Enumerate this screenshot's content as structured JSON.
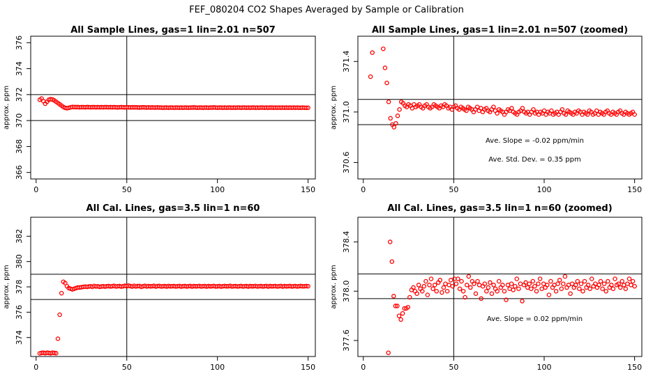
{
  "figure_title": "FEF_080204  CO2 Shapes Averaged by Sample or Calibration",
  "chart_data": [
    {
      "type": "scatter",
      "title": "All Sample Lines, gas=1 lin=2.01 n=507",
      "xlabel": "",
      "ylabel": "approx. ppm",
      "xlim": [
        -3,
        154
      ],
      "ylim": [
        365.5,
        376.5
      ],
      "xticks": [
        0,
        50,
        100,
        150
      ],
      "yticks": [
        366,
        368,
        370,
        372,
        374,
        376
      ],
      "hlines": [
        370.0,
        372.0
      ],
      "vlines": [
        50
      ],
      "grid": false,
      "marker_color": "#ff0000",
      "annotations": [],
      "series": [
        {
          "x_start": 2,
          "x_end": 150,
          "y": [
            371.6,
            371.7,
            371.5,
            371.3,
            371.45,
            371.6,
            371.65,
            371.62,
            371.55,
            371.45,
            371.35,
            371.25,
            371.15,
            371.05,
            370.98,
            370.95,
            370.98,
            371.02,
            371.05,
            371.04,
            371.03,
            371.04,
            371.02,
            371.03,
            371.03,
            371.02,
            371.04,
            371.03,
            371.02,
            371.03,
            371.03,
            371.02,
            371.03,
            371.02,
            371.03,
            371.02,
            371.03,
            371.03,
            371.02,
            371.03,
            371.02,
            371.03,
            371.02,
            371.01,
            371.02,
            371.03,
            371.02,
            371.01,
            371.02,
            371.02,
            371.01,
            371.02,
            371.01,
            371.02,
            371.01,
            371.0,
            371.01,
            371.02,
            371.01,
            371.0,
            371.01,
            371.0,
            371.01,
            371.0,
            371.0,
            371.01,
            371.0,
            371.0,
            370.99,
            371.0,
            371.0,
            370.99,
            371.0,
            371.0,
            370.99,
            371.0,
            371.0,
            370.99,
            371.0,
            370.99,
            371.0,
            371.0,
            370.99,
            371.0,
            371.0,
            371.01,
            371.0,
            370.99,
            371.0,
            371.0,
            370.99,
            371.0,
            371.0,
            370.99,
            371.0,
            371.0,
            371.01,
            371.0,
            370.99,
            371.0,
            371.0,
            370.99,
            371.0,
            370.99,
            371.0,
            371.0,
            370.99,
            371.0,
            370.99,
            371.0,
            371.0,
            370.99,
            371.0,
            371.0,
            370.99,
            371.0,
            370.99,
            371.0,
            371.0,
            370.99,
            371.0,
            370.99,
            371.0,
            371.0,
            370.99,
            371.0,
            370.99,
            371.0,
            371.0,
            370.99,
            371.0,
            370.99,
            371.0,
            370.99,
            371.0,
            370.99,
            371.0,
            370.99,
            371.0,
            370.99,
            371.0,
            370.99,
            371.0,
            370.99,
            370.99,
            371.0,
            370.99,
            370.99,
            370.99
          ]
        }
      ]
    },
    {
      "type": "scatter",
      "title": "All Sample Lines, gas=1 lin=2.01 n=507 (zoomed)",
      "xlabel": "",
      "ylabel": "approx. ppm",
      "xlim": [
        -3,
        154
      ],
      "ylim": [
        370.47,
        371.6
      ],
      "xticks": [
        0,
        50,
        100,
        150
      ],
      "yticks": [
        370.6,
        371.0,
        371.4
      ],
      "hlines": [
        370.9,
        371.1
      ],
      "vlines": [
        50
      ],
      "grid": false,
      "marker_color": "#ff0000",
      "annotations": [
        "Ave. Slope = -0.02  ppm/min",
        "Ave. Std. Dev. = 0.35  ppm"
      ],
      "series": [
        {
          "x_start": 2,
          "x_end": 150,
          "y": [
            null,
            null,
            371.28,
            371.47,
            null,
            null,
            null,
            null,
            null,
            371.5,
            371.35,
            371.23,
            371.08,
            370.95,
            370.9,
            370.88,
            370.91,
            370.97,
            371.02,
            371.08,
            371.07,
            371.05,
            371.04,
            371.06,
            371.05,
            371.03,
            371.06,
            371.04,
            371.05,
            371.06,
            371.04,
            371.03,
            371.05,
            371.06,
            371.04,
            371.03,
            371.04,
            371.06,
            371.05,
            371.04,
            371.03,
            371.05,
            371.04,
            371.06,
            371.05,
            371.03,
            371.04,
            371.02,
            371.04,
            371.05,
            371.03,
            371.02,
            371.04,
            371.03,
            371.02,
            371.01,
            371.04,
            371.03,
            371.02,
            371.0,
            371.02,
            371.04,
            371.01,
            371.03,
            371.0,
            371.02,
            371.03,
            371.01,
            371.0,
            371.02,
            371.04,
            371.01,
            370.99,
            371.02,
            371.01,
            371.0,
            370.98,
            371.0,
            371.02,
            371.01,
            371.03,
            371.0,
            370.99,
            370.98,
            371.0,
            371.01,
            371.03,
            371.0,
            370.99,
            371.0,
            370.98,
            371.0,
            371.02,
            370.99,
            371.0,
            370.98,
            371.0,
            370.99,
            371.01,
            370.98,
            371.0,
            370.99,
            371.01,
            370.98,
            370.99,
            371.0,
            370.98,
            371.0,
            371.02,
            370.99,
            370.98,
            371.01,
            371.0,
            370.99,
            370.98,
            371.0,
            370.99,
            371.01,
            371.0,
            370.98,
            371.0,
            370.99,
            370.98,
            371.01,
            371.0,
            370.98,
            370.99,
            371.01,
            370.98,
            371.0,
            370.99,
            370.98,
            371.0,
            371.01,
            370.99,
            370.98,
            371.0,
            370.99,
            370.98,
            371.0,
            371.01,
            370.99,
            370.98,
            371.0,
            370.99,
            370.98,
            370.99,
            371.0,
            370.98
          ]
        }
      ]
    },
    {
      "type": "scatter",
      "title": "All Cal. Lines, gas=3.5 lin=1 n=60",
      "xlabel": "",
      "ylabel": "approx. ppm",
      "xlim": [
        -3,
        154
      ],
      "ylim": [
        372.5,
        383.5
      ],
      "xticks": [
        0,
        50,
        100,
        150
      ],
      "yticks": [
        374,
        376,
        378,
        380,
        382
      ],
      "hlines": [
        377.0,
        379.0
      ],
      "vlines": [
        50
      ],
      "grid": false,
      "marker_color": "#ff0000",
      "annotations": [],
      "series": [
        {
          "x_start": 2,
          "x_end": 150,
          "y": [
            372.75,
            372.78,
            372.8,
            372.76,
            372.8,
            372.78,
            372.75,
            372.8,
            372.78,
            372.76,
            373.9,
            375.8,
            377.5,
            378.4,
            378.3,
            378.05,
            377.9,
            377.85,
            377.8,
            377.85,
            377.9,
            377.95,
            377.95,
            377.97,
            378.0,
            378.02,
            378.0,
            378.03,
            378.05,
            378.0,
            378.07,
            378.03,
            378.05,
            378.0,
            378.03,
            378.05,
            378.02,
            378.05,
            378.06,
            378.03,
            378.05,
            378.08,
            378.03,
            378.05,
            378.06,
            378.02,
            378.05,
            378.09,
            378.05,
            378.1,
            378.06,
            378.02,
            378.08,
            378.03,
            378.06,
            378.07,
            378.0,
            378.05,
            378.08,
            378.03,
            378.06,
            378.04,
            378.05,
            378.08,
            378.02,
            378.06,
            378.07,
            378.03,
            378.05,
            378.06,
            378.02,
            378.07,
            378.04,
            378.05,
            378.06,
            378.03,
            378.05,
            378.07,
            378.02,
            378.05,
            378.06,
            378.03,
            378.05,
            378.07,
            378.02,
            378.06,
            378.04,
            378.05,
            378.07,
            378.03,
            378.05,
            378.06,
            378.02,
            378.06,
            378.04,
            378.05,
            378.07,
            378.03,
            378.04,
            378.06,
            378.02,
            378.05,
            378.07,
            378.04,
            378.05,
            378.08,
            378.03,
            378.05,
            378.06,
            378.03,
            378.05,
            378.07,
            378.03,
            378.05,
            378.06,
            378.02,
            378.06,
            378.04,
            378.05,
            378.07,
            378.03,
            378.05,
            378.06,
            378.03,
            378.05,
            378.07,
            378.02,
            378.06,
            378.04,
            378.05,
            378.06,
            378.03,
            378.05,
            378.07,
            378.02,
            378.06,
            378.04,
            378.05,
            378.07,
            378.03,
            378.05,
            378.06,
            378.03,
            378.05,
            378.07,
            378.04,
            378.05,
            378.06,
            378.05
          ]
        }
      ]
    },
    {
      "type": "scatter",
      "title": "All Cal. Lines, gas=3.5 lin=1 n=60 (zoomed)",
      "xlabel": "",
      "ylabel": "approx. ppm",
      "xlim": [
        -3,
        154
      ],
      "ylim": [
        377.47,
        378.6
      ],
      "xticks": [
        0,
        50,
        100,
        150
      ],
      "yticks": [
        377.6,
        378.0,
        378.4
      ],
      "hlines": [
        377.94,
        378.14
      ],
      "vlines": [
        50
      ],
      "grid": false,
      "marker_color": "#ff0000",
      "annotations": [
        "Ave. Slope = 0.02  ppm/min"
      ],
      "series": [
        {
          "x_start": 2,
          "x_end": 150,
          "y": [
            null,
            null,
            null,
            null,
            null,
            null,
            null,
            null,
            null,
            null,
            null,
            null,
            377.5,
            378.4,
            378.24,
            377.96,
            377.88,
            377.88,
            377.8,
            377.77,
            377.82,
            377.86,
            377.86,
            377.87,
            377.95,
            378.01,
            378.03,
            378.0,
            377.98,
            378.05,
            378.02,
            378.0,
            378.04,
            378.08,
            377.97,
            378.05,
            378.1,
            378.02,
            378.05,
            378.0,
            378.07,
            378.09,
            377.99,
            378.03,
            378.06,
            378.0,
            378.05,
            378.09,
            378.04,
            378.1,
            378.06,
            378.1,
            378.02,
            378.08,
            378.0,
            377.95,
            378.05,
            378.12,
            378.03,
            378.08,
            378.06,
            377.98,
            378.08,
            378.05,
            377.94,
            378.04,
            378.06,
            378.0,
            378.03,
            378.07,
            377.98,
            378.05,
            378.02,
            378.0,
            378.08,
            378.03,
            378.05,
            378.0,
            377.93,
            378.05,
            378.02,
            378.06,
            378.01,
            378.04,
            378.1,
            378.02,
            378.06,
            377.92,
            378.05,
            378.07,
            378.03,
            378.06,
            378.02,
            378.08,
            378.04,
            378.0,
            378.06,
            378.1,
            378.02,
            378.06,
            378.03,
            378.05,
            377.97,
            378.08,
            378.03,
            378.05,
            378.0,
            378.06,
            378.09,
            378.02,
            378.06,
            378.12,
            378.03,
            378.05,
            377.98,
            378.06,
            378.03,
            378.05,
            378.08,
            378.02,
            378.06,
            378.0,
            378.08,
            378.03,
            378.05,
            378.02,
            378.1,
            378.04,
            378.06,
            378.03,
            378.05,
            378.08,
            378.02,
            378.06,
            378.0,
            378.08,
            378.03,
            378.05,
            378.02,
            378.1,
            378.05,
            378.06,
            378.03,
            378.08,
            378.05,
            378.02,
            378.06,
            378.1,
            378.05,
            378.08,
            378.04
          ]
        }
      ]
    }
  ]
}
